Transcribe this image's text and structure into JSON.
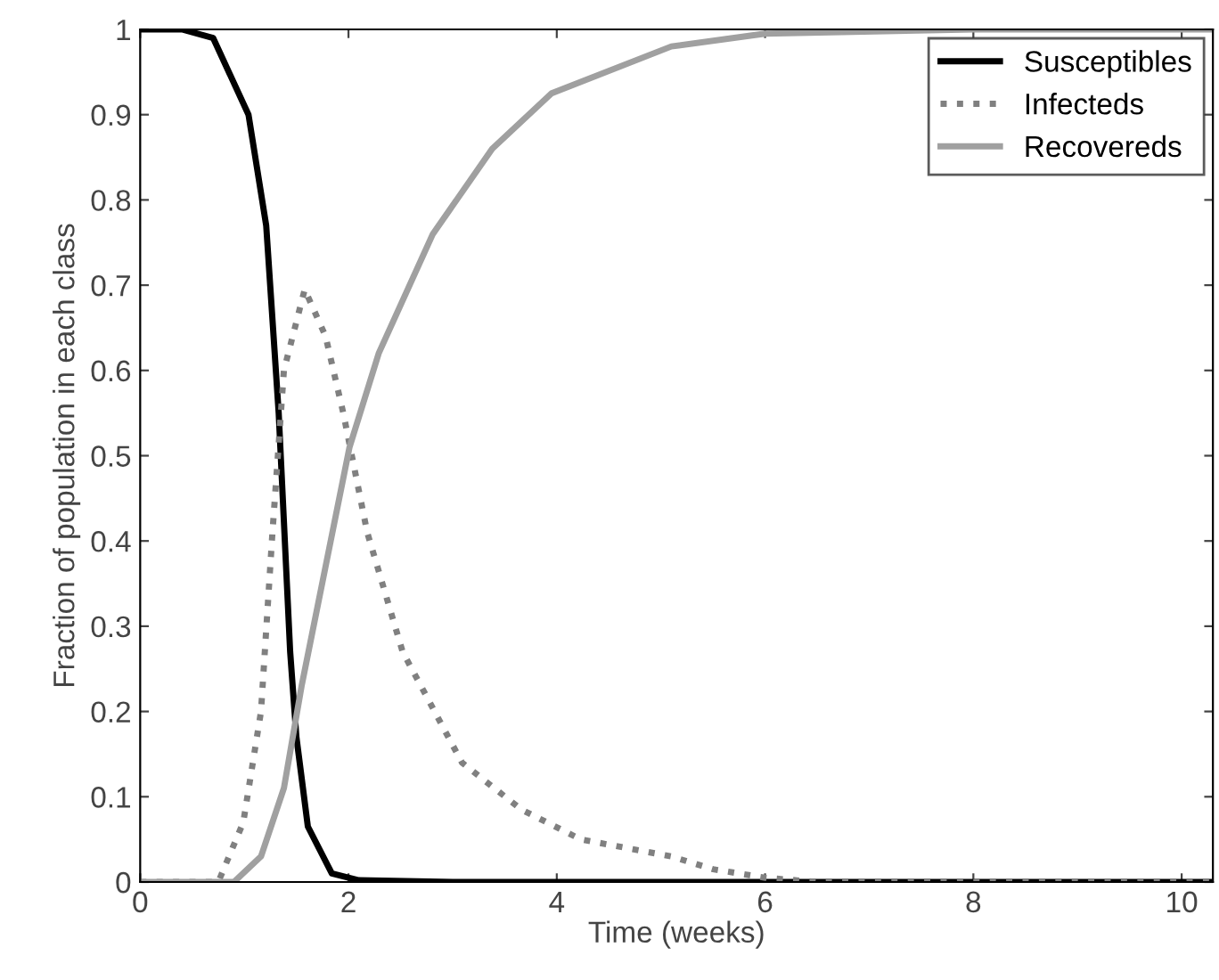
{
  "chart_data": {
    "type": "line",
    "xlabel": "Time (weeks)",
    "ylabel": "Fraction of population in each class",
    "xlim": [
      0,
      10.3
    ],
    "ylim": [
      0,
      1
    ],
    "xticks": [
      0,
      2,
      4,
      6,
      8,
      10
    ],
    "yticks": [
      0,
      0.1,
      0.2,
      0.3,
      0.4,
      0.5,
      0.6,
      0.7,
      0.8,
      0.9,
      1
    ],
    "grid": false,
    "legend": "top right",
    "marker": "none",
    "series": [
      {
        "name": "Susceptibles",
        "color": "#000000",
        "line_style": "solid",
        "x": [
          0,
          0.4,
          0.7,
          1.04,
          1.21,
          1.33,
          1.44,
          1.5,
          1.61,
          1.84,
          2.1,
          3,
          5,
          10.3
        ],
        "values": [
          1,
          1,
          0.99,
          0.9,
          0.77,
          0.55,
          0.27,
          0.17,
          0.065,
          0.01,
          0.002,
          0,
          0,
          0
        ]
      },
      {
        "name": "Infecteds",
        "color": "#808080",
        "line_style": "dotted",
        "x": [
          0,
          0.75,
          0.99,
          1.16,
          1.27,
          1.38,
          1.58,
          1.78,
          1.95,
          2.18,
          2.52,
          3.09,
          3.66,
          4.23,
          5.1,
          5.5,
          6,
          6.5,
          10.3
        ],
        "values": [
          0,
          0,
          0.07,
          0.2,
          0.41,
          0.6,
          0.695,
          0.64,
          0.55,
          0.41,
          0.27,
          0.14,
          0.085,
          0.05,
          0.03,
          0.015,
          0.005,
          0,
          0
        ]
      },
      {
        "name": "Recovereds",
        "color": "#a0a0a0",
        "line_style": "solid",
        "x": [
          0,
          0.9,
          1.16,
          1.38,
          1.55,
          1.78,
          2.01,
          2.29,
          2.81,
          3.38,
          3.95,
          5.1,
          6,
          8,
          10.3
        ],
        "values": [
          0,
          0,
          0.03,
          0.11,
          0.23,
          0.37,
          0.51,
          0.62,
          0.76,
          0.86,
          0.925,
          0.98,
          0.995,
          1,
          1
        ]
      }
    ]
  }
}
